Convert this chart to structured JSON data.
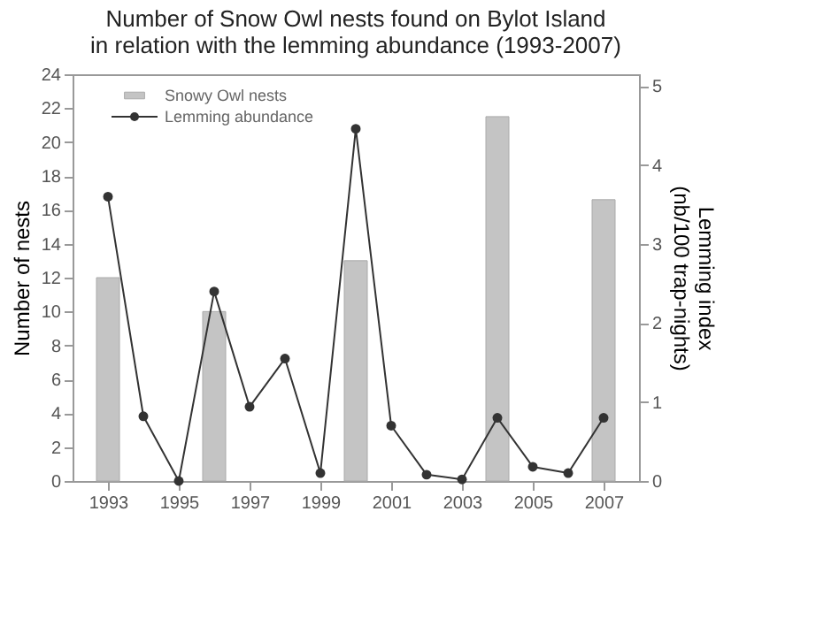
{
  "chart_data": {
    "type": "bar",
    "title": "Number of Snow Owl nests found on Bylot Island\nin relation with the lemming abundance (1993-2007)",
    "xlabel": null,
    "ylabel": "Number of nests",
    "y2label": "Lemming index\n(nb/100 trap-nights)",
    "x": [
      1993,
      1994,
      1995,
      1996,
      1997,
      1998,
      1999,
      2000,
      2001,
      2002,
      2003,
      2004,
      2005,
      2006,
      2007
    ],
    "series": [
      {
        "name": "Snowy Owl nests",
        "color": "#c4c4c4",
        "values": [
          12,
          null,
          null,
          10,
          null,
          null,
          null,
          13,
          null,
          null,
          null,
          21.5,
          null,
          null,
          16.6
        ]
      },
      {
        "name": "Lemming abundance",
        "type": "line",
        "axis": "y2",
        "color": "#333333",
        "marker": "circle",
        "values": [
          3.6,
          0.82,
          0,
          2.4,
          0.94,
          1.55,
          0.1,
          4.46,
          0.7,
          0.08,
          0.02,
          0.8,
          0.18,
          0.1,
          0.8
        ]
      }
    ],
    "xlim": [
      1992,
      2008
    ],
    "xticks": [
      1993,
      1995,
      1997,
      1999,
      2001,
      2003,
      2005,
      2007
    ],
    "ylim": [
      0,
      24
    ],
    "yticks": [
      0,
      2,
      4,
      6,
      8,
      10,
      12,
      14,
      16,
      18,
      20,
      22,
      24
    ],
    "y2lim": [
      0,
      5.15
    ],
    "y2ticks": [
      0,
      1,
      2,
      3,
      4,
      5
    ],
    "legend": "top left",
    "grid": false
  }
}
